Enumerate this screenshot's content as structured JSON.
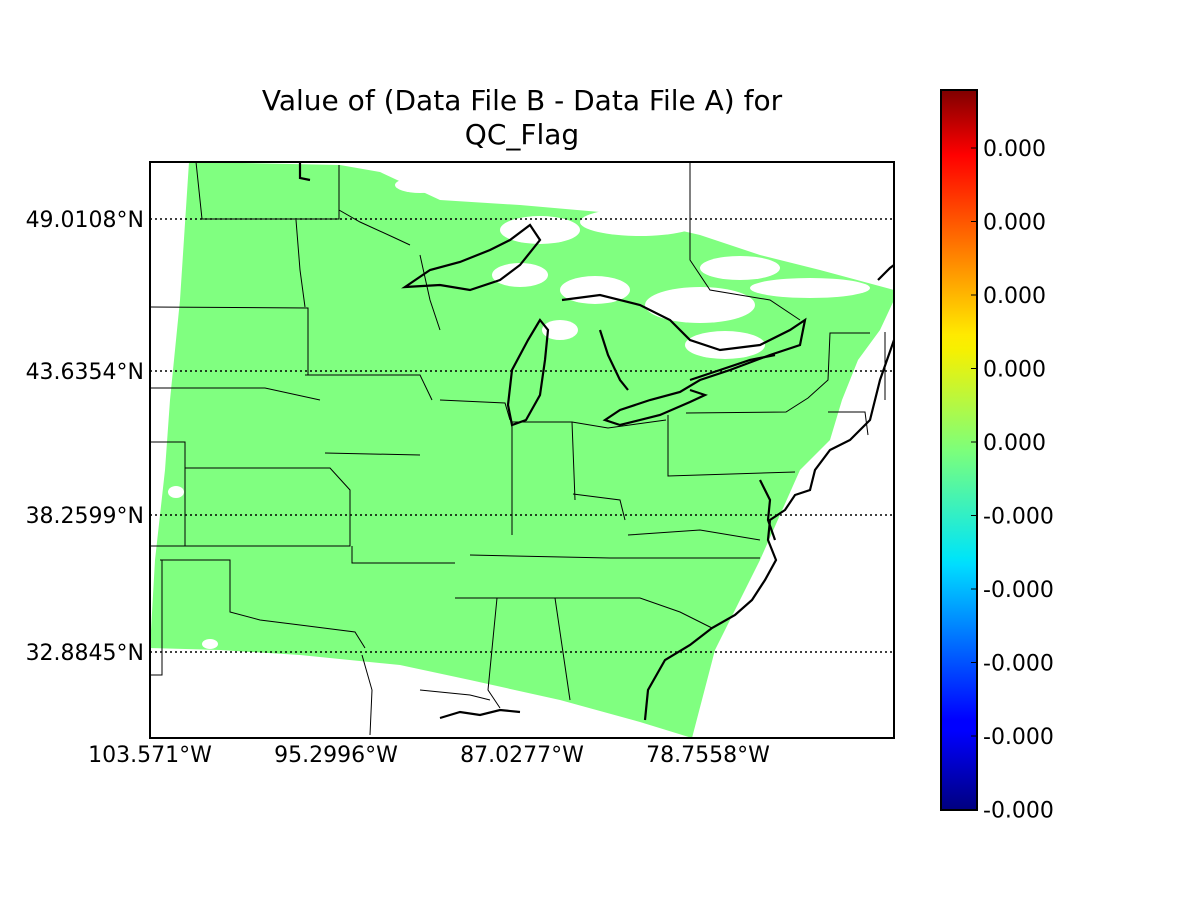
{
  "title_line1": "Value of (Data File B - Data File A) for",
  "title_line2": "QC_Flag",
  "chart_data": {
    "type": "heatmap",
    "title": "Value of (Data File B - Data File A) for QC_Flag",
    "field": "QC_Flag",
    "projection": "lambert-conformal",
    "domain": "Central and Eastern United States",
    "uniform_value": 0.0,
    "fill_color": "#80ff80",
    "missing_color": "#ffffff",
    "colormap": "jet",
    "colorbar_ticks": [
      "0.000",
      "0.000",
      "0.000",
      "0.000",
      "0.000",
      "-0.000",
      "-0.000",
      "-0.000",
      "-0.000",
      "-0.000"
    ],
    "lat_ticks": [
      "49.0108°N",
      "43.6354°N",
      "38.2599°N",
      "32.8845°N"
    ],
    "lon_ticks": [
      "103.571°W",
      "95.2996°W",
      "87.0277°W",
      "78.7558°W"
    ],
    "grid": "dotted",
    "legend": "right"
  }
}
